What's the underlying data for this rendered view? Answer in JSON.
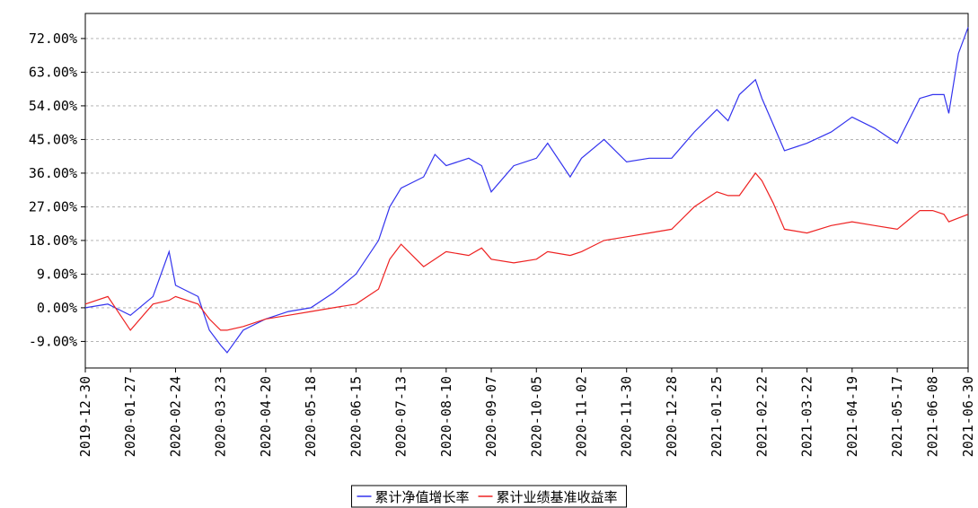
{
  "chart_data": {
    "type": "line",
    "x": [
      "2019-12-30",
      "2020-01-13",
      "2020-01-27",
      "2020-02-10",
      "2020-02-20",
      "2020-02-24",
      "2020-03-09",
      "2020-03-16",
      "2020-03-23",
      "2020-03-27",
      "2020-04-06",
      "2020-04-20",
      "2020-05-04",
      "2020-05-18",
      "2020-06-01",
      "2020-06-15",
      "2020-06-29",
      "2020-07-06",
      "2020-07-13",
      "2020-07-27",
      "2020-08-03",
      "2020-08-10",
      "2020-08-24",
      "2020-09-01",
      "2020-09-07",
      "2020-09-21",
      "2020-10-05",
      "2020-10-12",
      "2020-10-26",
      "2020-11-02",
      "2020-11-16",
      "2020-11-30",
      "2020-12-14",
      "2020-12-28",
      "2021-01-11",
      "2021-01-25",
      "2021-02-01",
      "2021-02-08",
      "2021-02-18",
      "2021-02-22",
      "2021-03-01",
      "2021-03-08",
      "2021-03-22",
      "2021-04-06",
      "2021-04-19",
      "2021-05-03",
      "2021-05-17",
      "2021-05-31",
      "2021-06-08",
      "2021-06-15",
      "2021-06-18",
      "2021-06-24",
      "2021-06-30"
    ],
    "series": [
      {
        "name": "累计净值增长率",
        "color": "#3333ee",
        "values": [
          0,
          1,
          -2,
          3,
          15,
          6,
          3,
          -6,
          -10,
          -12,
          -6,
          -3,
          -1,
          0,
          4,
          9,
          18,
          27,
          32,
          35,
          41,
          38,
          40,
          38,
          31,
          38,
          40,
          44,
          35,
          40,
          45,
          39,
          40,
          40,
          47,
          53,
          50,
          57,
          61,
          56,
          49,
          42,
          44,
          47,
          51,
          48,
          44,
          56,
          57,
          57,
          52,
          68,
          75
        ]
      },
      {
        "name": "累计业绩基准收益率",
        "color": "#ee2222",
        "values": [
          1,
          3,
          -6,
          1,
          2,
          3,
          1,
          -3,
          -6,
          -6,
          -5,
          -3,
          -2,
          -1,
          0,
          1,
          5,
          13,
          17,
          11,
          13,
          15,
          14,
          16,
          13,
          12,
          13,
          15,
          14,
          15,
          18,
          19,
          20,
          21,
          27,
          31,
          30,
          30,
          36,
          34,
          28,
          21,
          20,
          22,
          23,
          22,
          21,
          26,
          26,
          25,
          23,
          24,
          25
        ]
      }
    ],
    "xlim": [
      "2019-12-30",
      "2021-06-30"
    ],
    "xticks": [
      "2019-12-30",
      "2020-01-27",
      "2020-02-24",
      "2020-03-23",
      "2020-04-20",
      "2020-05-18",
      "2020-06-15",
      "2020-07-13",
      "2020-08-10",
      "2020-09-07",
      "2020-10-05",
      "2020-11-02",
      "2020-11-30",
      "2020-12-28",
      "2021-01-25",
      "2021-02-22",
      "2021-03-22",
      "2021-04-19",
      "2021-05-17",
      "2021-06-08",
      "2021-06-30"
    ],
    "ylim": [
      -16.1,
      78.7
    ],
    "yticks": [
      {
        "value": -9,
        "label": "-9.00%"
      },
      {
        "value": 0,
        "label": "0.00%"
      },
      {
        "value": 9,
        "label": "9.00%"
      },
      {
        "value": 18,
        "label": "18.00%"
      },
      {
        "value": 27,
        "label": "27.00%"
      },
      {
        "value": 36,
        "label": "36.00%"
      },
      {
        "value": 45,
        "label": "45.00%"
      },
      {
        "value": 54,
        "label": "54.00%"
      },
      {
        "value": 63,
        "label": "63.00%"
      },
      {
        "value": 72,
        "label": "72.00%"
      }
    ],
    "grid": true,
    "legend": "bottom"
  }
}
